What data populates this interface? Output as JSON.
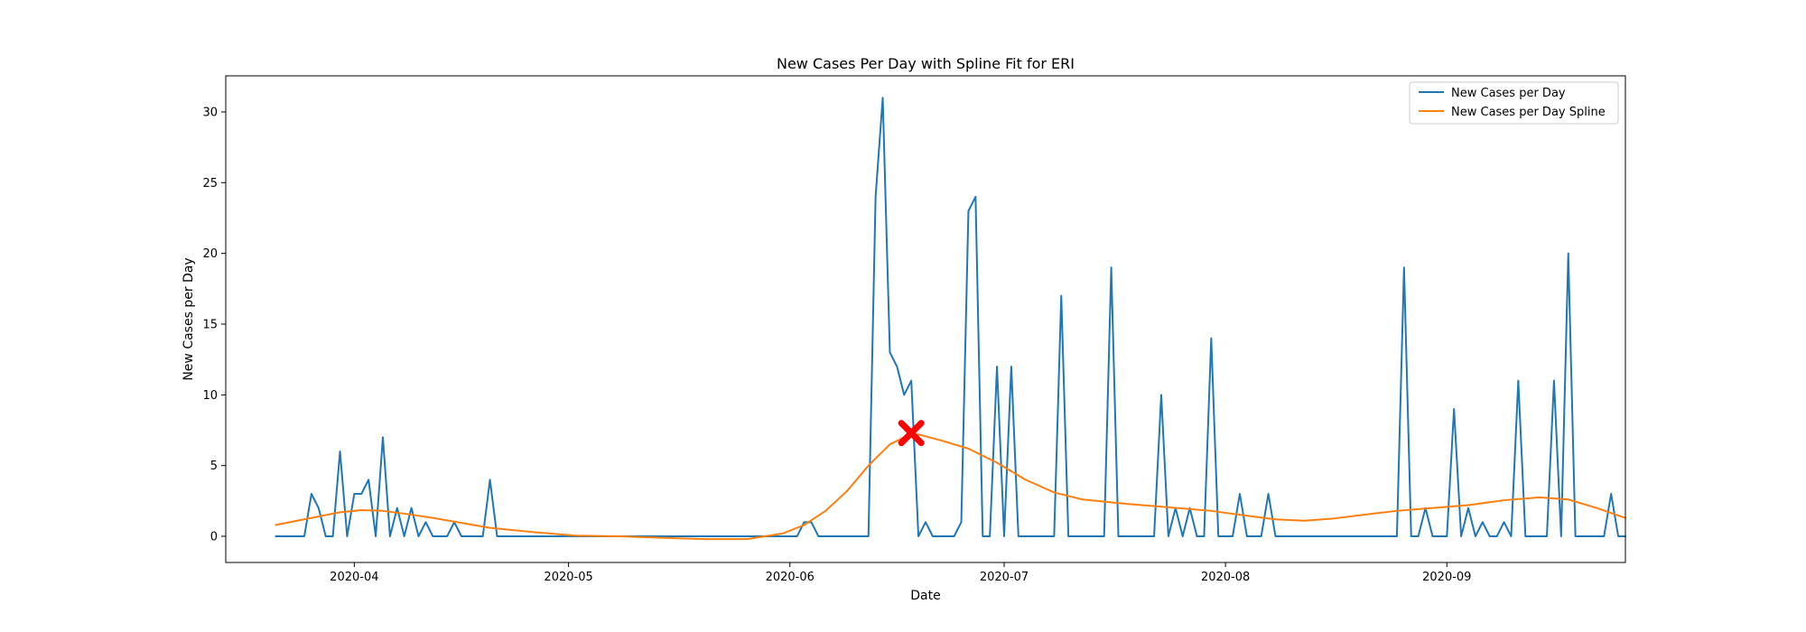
{
  "chart_data": {
    "type": "line",
    "title": "New Cases Per Day with Spline Fit for ERI",
    "xlabel": "Date",
    "ylabel": "New Cases per Day",
    "x_axis_type": "date",
    "xlim": [
      "2020-03-14",
      "2020-09-26"
    ],
    "ylim": [
      -1.85,
      32.55
    ],
    "x_ticks": [
      "2020-04",
      "2020-05",
      "2020-06",
      "2020-07",
      "2020-08",
      "2020-09"
    ],
    "x_tick_dates": [
      "2020-04-01",
      "2020-05-01",
      "2020-06-01",
      "2020-07-01",
      "2020-08-01",
      "2020-09-01"
    ],
    "y_ticks": [
      0,
      5,
      10,
      15,
      20,
      25,
      30
    ],
    "y_tick_labels": [
      "0",
      "5",
      "10",
      "15",
      "20",
      "25",
      "30"
    ],
    "grid": false,
    "legend_position": "upper right",
    "series": [
      {
        "name": "New Cases per Day",
        "color": "#1f77b4",
        "points": [
          [
            "2020-03-21",
            0
          ],
          [
            "2020-03-24",
            0
          ],
          [
            "2020-03-25",
            0
          ],
          [
            "2020-03-26",
            3
          ],
          [
            "2020-03-27",
            2
          ],
          [
            "2020-03-28",
            0
          ],
          [
            "2020-03-29",
            0
          ],
          [
            "2020-03-30",
            6
          ],
          [
            "2020-03-31",
            0
          ],
          [
            "2020-04-01",
            3
          ],
          [
            "2020-04-02",
            3
          ],
          [
            "2020-04-03",
            4
          ],
          [
            "2020-04-04",
            0
          ],
          [
            "2020-04-05",
            7
          ],
          [
            "2020-04-06",
            0
          ],
          [
            "2020-04-07",
            2
          ],
          [
            "2020-04-08",
            0
          ],
          [
            "2020-04-09",
            2
          ],
          [
            "2020-04-10",
            0
          ],
          [
            "2020-04-11",
            1
          ],
          [
            "2020-04-12",
            0
          ],
          [
            "2020-04-13",
            0
          ],
          [
            "2020-04-14",
            0
          ],
          [
            "2020-04-15",
            1
          ],
          [
            "2020-04-16",
            0
          ],
          [
            "2020-04-17",
            0
          ],
          [
            "2020-04-18",
            0
          ],
          [
            "2020-04-19",
            0
          ],
          [
            "2020-04-20",
            4
          ],
          [
            "2020-04-21",
            0
          ],
          [
            "2020-05-31",
            0
          ],
          [
            "2020-06-02",
            0
          ],
          [
            "2020-06-03",
            1
          ],
          [
            "2020-06-04",
            1
          ],
          [
            "2020-06-05",
            0
          ],
          [
            "2020-06-06",
            0
          ],
          [
            "2020-06-12",
            0
          ],
          [
            "2020-06-13",
            24
          ],
          [
            "2020-06-14",
            31
          ],
          [
            "2020-06-15",
            13
          ],
          [
            "2020-06-16",
            12
          ],
          [
            "2020-06-17",
            10
          ],
          [
            "2020-06-18",
            11
          ],
          [
            "2020-06-19",
            0
          ],
          [
            "2020-06-20",
            1
          ],
          [
            "2020-06-21",
            0
          ],
          [
            "2020-06-24",
            0
          ],
          [
            "2020-06-25",
            1
          ],
          [
            "2020-06-26",
            23
          ],
          [
            "2020-06-27",
            24
          ],
          [
            "2020-06-28",
            0
          ],
          [
            "2020-06-29",
            0
          ],
          [
            "2020-06-30",
            12
          ],
          [
            "2020-07-01",
            0
          ],
          [
            "2020-07-02",
            12
          ],
          [
            "2020-07-03",
            0
          ],
          [
            "2020-07-08",
            0
          ],
          [
            "2020-07-09",
            17
          ],
          [
            "2020-07-10",
            0
          ],
          [
            "2020-07-15",
            0
          ],
          [
            "2020-07-16",
            19
          ],
          [
            "2020-07-17",
            0
          ],
          [
            "2020-07-22",
            0
          ],
          [
            "2020-07-23",
            10
          ],
          [
            "2020-07-24",
            0
          ],
          [
            "2020-07-25",
            2
          ],
          [
            "2020-07-26",
            0
          ],
          [
            "2020-07-27",
            2
          ],
          [
            "2020-07-28",
            0
          ],
          [
            "2020-07-29",
            0
          ],
          [
            "2020-07-30",
            14
          ],
          [
            "2020-07-31",
            0
          ],
          [
            "2020-08-02",
            0
          ],
          [
            "2020-08-03",
            3
          ],
          [
            "2020-08-04",
            0
          ],
          [
            "2020-08-06",
            0
          ],
          [
            "2020-08-07",
            3
          ],
          [
            "2020-08-08",
            0
          ],
          [
            "2020-08-25",
            0
          ],
          [
            "2020-08-26",
            19
          ],
          [
            "2020-08-27",
            0
          ],
          [
            "2020-08-28",
            0
          ],
          [
            "2020-08-29",
            2
          ],
          [
            "2020-08-30",
            0
          ],
          [
            "2020-09-01",
            0
          ],
          [
            "2020-09-02",
            9
          ],
          [
            "2020-09-03",
            0
          ],
          [
            "2020-09-04",
            2
          ],
          [
            "2020-09-05",
            0
          ],
          [
            "2020-09-06",
            1
          ],
          [
            "2020-09-07",
            0
          ],
          [
            "2020-09-08",
            0
          ],
          [
            "2020-09-09",
            1
          ],
          [
            "2020-09-10",
            0
          ],
          [
            "2020-09-11",
            11
          ],
          [
            "2020-09-12",
            0
          ],
          [
            "2020-09-15",
            0
          ],
          [
            "2020-09-16",
            11
          ],
          [
            "2020-09-17",
            0
          ],
          [
            "2020-09-18",
            20
          ],
          [
            "2020-09-19",
            0
          ],
          [
            "2020-09-23",
            0
          ],
          [
            "2020-09-24",
            3
          ],
          [
            "2020-09-25",
            0
          ],
          [
            "2020-09-26",
            0
          ]
        ]
      },
      {
        "name": "New Cases per Day Spline",
        "color": "#ff7f0e",
        "points": [
          [
            "2020-03-21",
            0.8
          ],
          [
            "2020-03-24",
            1.1
          ],
          [
            "2020-03-27",
            1.4
          ],
          [
            "2020-03-30",
            1.7
          ],
          [
            "2020-04-02",
            1.85
          ],
          [
            "2020-04-05",
            1.8
          ],
          [
            "2020-04-08",
            1.6
          ],
          [
            "2020-04-12",
            1.3
          ],
          [
            "2020-04-16",
            0.95
          ],
          [
            "2020-04-20",
            0.6
          ],
          [
            "2020-04-26",
            0.3
          ],
          [
            "2020-05-02",
            0.05
          ],
          [
            "2020-05-08",
            0.0
          ],
          [
            "2020-05-14",
            -0.1
          ],
          [
            "2020-05-20",
            -0.2
          ],
          [
            "2020-05-26",
            -0.2
          ],
          [
            "2020-05-31",
            0.2
          ],
          [
            "2020-06-03",
            0.8
          ],
          [
            "2020-06-06",
            1.8
          ],
          [
            "2020-06-09",
            3.2
          ],
          [
            "2020-06-12",
            5.0
          ],
          [
            "2020-06-15",
            6.5
          ],
          [
            "2020-06-17",
            7.0
          ],
          [
            "2020-06-19",
            7.2
          ],
          [
            "2020-06-22",
            6.8
          ],
          [
            "2020-06-26",
            6.2
          ],
          [
            "2020-06-30",
            5.2
          ],
          [
            "2020-07-04",
            4.0
          ],
          [
            "2020-07-08",
            3.1
          ],
          [
            "2020-07-12",
            2.6
          ],
          [
            "2020-07-18",
            2.3
          ],
          [
            "2020-07-24",
            2.05
          ],
          [
            "2020-07-30",
            1.8
          ],
          [
            "2020-08-04",
            1.45
          ],
          [
            "2020-08-08",
            1.2
          ],
          [
            "2020-08-12",
            1.1
          ],
          [
            "2020-08-16",
            1.25
          ],
          [
            "2020-08-20",
            1.5
          ],
          [
            "2020-08-25",
            1.8
          ],
          [
            "2020-08-30",
            2.0
          ],
          [
            "2020-09-04",
            2.2
          ],
          [
            "2020-09-09",
            2.55
          ],
          [
            "2020-09-14",
            2.75
          ],
          [
            "2020-09-18",
            2.6
          ],
          [
            "2020-09-22",
            2.0
          ],
          [
            "2020-09-26",
            1.3
          ]
        ]
      }
    ],
    "annotations": [
      {
        "kind": "marker",
        "symbol": "X",
        "color": "#ff0000",
        "x": "2020-06-18",
        "y": 7.3
      }
    ]
  }
}
